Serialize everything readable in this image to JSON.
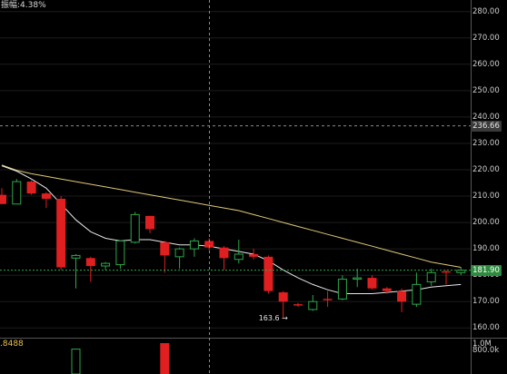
{
  "header": {
    "amplitude_text": "振幅:4.38%"
  },
  "volume_panel": {
    "value_label": ".8488",
    "axis_labels": [
      "1.0M",
      "800.0k"
    ]
  },
  "price_axis": {
    "ticks": [
      "280.00",
      "270.00",
      "260.00",
      "250.00",
      "240.00",
      "230.00",
      "220.00",
      "210.00",
      "200.00",
      "190.00",
      "180.00",
      "170.00",
      "160.00"
    ]
  },
  "crosshair": {
    "price_label": "236.66"
  },
  "last_price": {
    "label": "181.90"
  },
  "annotations": {
    "low_label": "163.6"
  },
  "colors": {
    "up": "#2da84a",
    "down": "#e02020",
    "ma_short": "#e8e8e8",
    "ma_long": "#e0c878",
    "grid": "#1c1c1c"
  },
  "chart_data": {
    "type": "candlestick",
    "ylim": [
      157,
      283
    ],
    "candles": [
      {
        "o": 210.5,
        "h": 213.0,
        "l": 207.0,
        "c": 207.0
      },
      {
        "o": 207.0,
        "h": 216.5,
        "l": 207.0,
        "c": 215.5
      },
      {
        "o": 215.5,
        "h": 216.0,
        "l": 210.5,
        "c": 211.0
      },
      {
        "o": 211.0,
        "h": 211.5,
        "l": 205.5,
        "c": 209.0
      },
      {
        "o": 209.0,
        "h": 210.0,
        "l": 182.0,
        "c": 183.0
      },
      {
        "o": 186.5,
        "h": 188.0,
        "l": 175.0,
        "c": 187.5
      },
      {
        "o": 186.5,
        "h": 187.0,
        "l": 177.5,
        "c": 183.5
      },
      {
        "o": 183.5,
        "h": 185.0,
        "l": 182.0,
        "c": 184.5
      },
      {
        "o": 184.0,
        "h": 193.0,
        "l": 182.5,
        "c": 193.0
      },
      {
        "o": 192.5,
        "h": 204.0,
        "l": 192.0,
        "c": 203.0
      },
      {
        "o": 202.5,
        "h": 202.5,
        "l": 196.0,
        "c": 197.5
      },
      {
        "o": 192.5,
        "h": 193.0,
        "l": 181.0,
        "c": 187.5
      },
      {
        "o": 187.0,
        "h": 190.5,
        "l": 182.5,
        "c": 190.0
      },
      {
        "o": 190.0,
        "h": 194.0,
        "l": 187.0,
        "c": 193.0
      },
      {
        "o": 193.0,
        "h": 194.0,
        "l": 189.5,
        "c": 190.5
      },
      {
        "o": 190.5,
        "h": 191.0,
        "l": 182.0,
        "c": 186.5
      },
      {
        "o": 186.0,
        "h": 193.5,
        "l": 184.5,
        "c": 188.0
      },
      {
        "o": 188.0,
        "h": 190.0,
        "l": 186.0,
        "c": 187.0
      },
      {
        "o": 187.0,
        "h": 187.5,
        "l": 173.0,
        "c": 174.0
      },
      {
        "o": 173.5,
        "h": 174.0,
        "l": 163.6,
        "c": 170.0
      },
      {
        "o": 169.0,
        "h": 169.5,
        "l": 168.0,
        "c": 168.5
      },
      {
        "o": 167.0,
        "h": 172.5,
        "l": 166.5,
        "c": 170.0
      },
      {
        "o": 171.0,
        "h": 174.0,
        "l": 168.0,
        "c": 170.5
      },
      {
        "o": 171.0,
        "h": 180.0,
        "l": 170.5,
        "c": 178.5
      },
      {
        "o": 178.5,
        "h": 182.5,
        "l": 175.5,
        "c": 179.0
      },
      {
        "o": 179.0,
        "h": 180.0,
        "l": 174.5,
        "c": 175.0
      },
      {
        "o": 175.0,
        "h": 175.5,
        "l": 173.0,
        "c": 174.0
      },
      {
        "o": 174.0,
        "h": 175.0,
        "l": 166.0,
        "c": 170.0
      },
      {
        "o": 169.0,
        "h": 181.0,
        "l": 168.0,
        "c": 176.5
      },
      {
        "o": 177.5,
        "h": 182.5,
        "l": 176.0,
        "c": 181.0
      },
      {
        "o": 181.5,
        "h": 182.0,
        "l": 176.5,
        "c": 181.0
      },
      {
        "o": 181.0,
        "h": 183.0,
        "l": 180.0,
        "c": 181.9
      }
    ],
    "ma_short": [
      221.5,
      219.5,
      216.5,
      213.0,
      207.0,
      201.0,
      196.5,
      194.0,
      193.0,
      193.5,
      193.5,
      192.5,
      191.5,
      191.5,
      191.0,
      190.0,
      189.0,
      188.0,
      185.5,
      182.0,
      179.0,
      176.5,
      174.5,
      173.0,
      173.0,
      173.0,
      173.5,
      174.0,
      174.5,
      175.5,
      176.0,
      176.5
    ],
    "ma_long": [
      221.8,
      219.8,
      218.5,
      217.5,
      216.5,
      215.5,
      214.5,
      213.5,
      212.5,
      211.5,
      210.5,
      209.5,
      208.5,
      207.5,
      206.5,
      205.5,
      204.5,
      203.0,
      201.5,
      200.0,
      198.5,
      197.0,
      195.5,
      194.0,
      192.5,
      191.0,
      189.5,
      188.0,
      186.5,
      185.0,
      184.0,
      183.0
    ],
    "volume": [
      null,
      null,
      null,
      null,
      null,
      838000,
      null,
      null,
      null,
      null,
      null,
      1040000,
      null,
      null,
      null,
      null,
      null,
      null,
      null,
      null,
      null,
      null,
      null,
      null,
      null,
      null,
      null,
      null,
      null,
      null,
      null,
      null
    ],
    "volume_colors": [
      "",
      "",
      "",
      "",
      "",
      "up",
      "",
      "",
      "",
      "",
      "",
      "down",
      "",
      "",
      "",
      "",
      "",
      "",
      "",
      "",
      "",
      "",
      "",
      "",
      "",
      "",
      "",
      "",
      "",
      "",
      "",
      ""
    ]
  }
}
